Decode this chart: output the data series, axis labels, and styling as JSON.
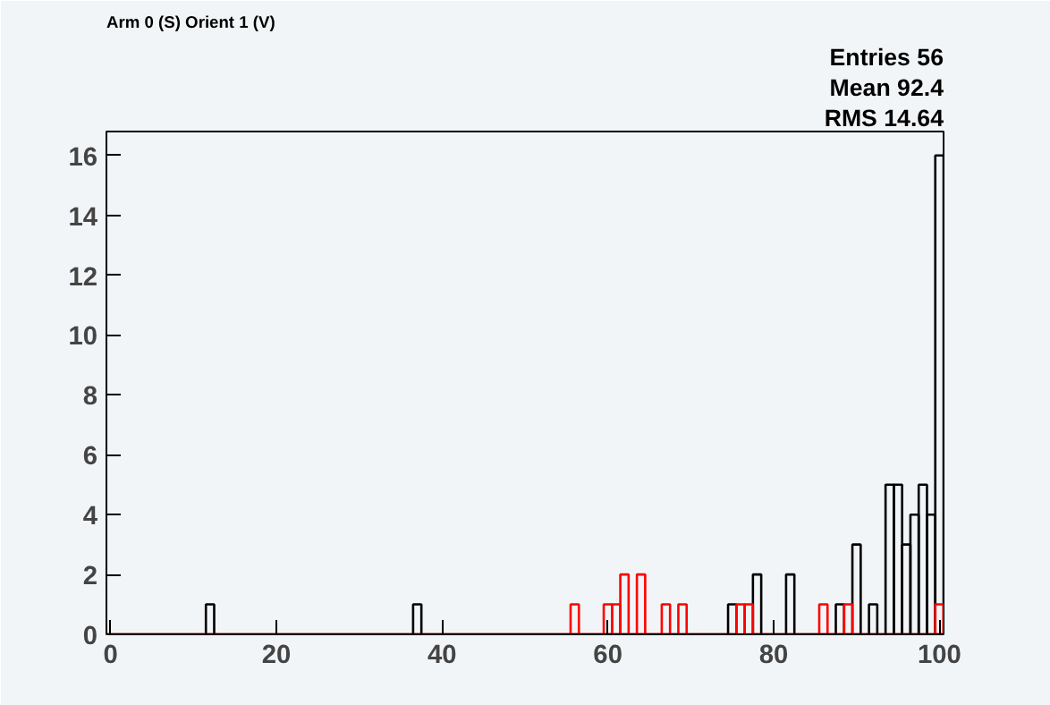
{
  "chart_data": {
    "type": "histogram",
    "title": "Arm 0 (S) Orient 1 (V)",
    "bins": [
      -0.5,
      0.5,
      1.5,
      2.5,
      3.5,
      4.5,
      5.5,
      6.5,
      7.5,
      8.5,
      9.5,
      10.5,
      11.5,
      12.5,
      13.5,
      14.5,
      15.5,
      16.5,
      17.5,
      18.5,
      19.5,
      20.5,
      21.5,
      22.5,
      23.5,
      24.5,
      25.5,
      26.5,
      27.5,
      28.5,
      29.5,
      30.5,
      31.5,
      32.5,
      33.5,
      34.5,
      35.5,
      36.5,
      37.5,
      38.5,
      39.5,
      40.5,
      41.5,
      42.5,
      43.5,
      44.5,
      45.5,
      46.5,
      47.5,
      48.5,
      49.5,
      50.5,
      51.5,
      52.5,
      53.5,
      54.5,
      55.5,
      56.5,
      57.5,
      58.5,
      59.5,
      60.5,
      61.5,
      62.5,
      63.5,
      64.5,
      65.5,
      66.5,
      67.5,
      68.5,
      69.5,
      70.5,
      71.5,
      72.5,
      73.5,
      74.5,
      75.5,
      76.5,
      77.5,
      78.5,
      79.5,
      80.5,
      81.5,
      82.5,
      83.5,
      84.5,
      85.5,
      86.5,
      87.5,
      88.5,
      89.5,
      90.5,
      91.5,
      92.5,
      93.5,
      94.5,
      95.5,
      96.5,
      97.5,
      98.5,
      99.5,
      100.5
    ],
    "series": [
      {
        "color": "#000000",
        "values": [
          0,
          0,
          0,
          0,
          0,
          0,
          0,
          0,
          0,
          0,
          0,
          0,
          1,
          0,
          0,
          0,
          0,
          0,
          0,
          0,
          0,
          0,
          0,
          0,
          0,
          0,
          0,
          0,
          0,
          0,
          0,
          0,
          0,
          0,
          0,
          0,
          0,
          1,
          0,
          0,
          0,
          0,
          0,
          0,
          0,
          0,
          0,
          0,
          0,
          0,
          0,
          0,
          0,
          0,
          0,
          0,
          0,
          0,
          0,
          0,
          0,
          0,
          0,
          0,
          0,
          0,
          0,
          0,
          0,
          0,
          0,
          0,
          0,
          0,
          0,
          1,
          null,
          null,
          2,
          0,
          0,
          0,
          2,
          0,
          0,
          0,
          0,
          0,
          1,
          0,
          3,
          0,
          1,
          0,
          5,
          5,
          3,
          4,
          5,
          4,
          16
        ]
      },
      {
        "color": "#ff0000",
        "values": [
          0,
          0,
          0,
          0,
          0,
          0,
          0,
          0,
          0,
          0,
          0,
          0,
          0,
          0,
          0,
          0,
          0,
          0,
          0,
          0,
          0,
          0,
          0,
          0,
          0,
          0,
          0,
          0,
          0,
          0,
          0,
          0,
          0,
          0,
          0,
          0,
          0,
          0,
          0,
          0,
          0,
          0,
          0,
          0,
          0,
          0,
          0,
          0,
          0,
          0,
          0,
          0,
          0,
          0,
          0,
          0,
          1,
          0,
          0,
          0,
          1,
          1,
          2,
          0,
          2,
          0,
          0,
          1,
          0,
          1,
          0,
          0,
          0,
          0,
          0,
          0,
          1,
          1,
          0,
          0,
          0,
          0,
          0,
          0,
          0,
          0,
          1,
          0,
          0,
          1,
          0,
          0,
          0,
          0,
          0,
          0,
          0,
          0,
          0,
          0,
          1
        ]
      }
    ],
    "xlim": [
      -0.5,
      100.5
    ],
    "xticks": [
      0,
      20,
      40,
      60,
      80,
      100
    ],
    "ylim": [
      0,
      16.8
    ],
    "yticks": [
      0,
      2,
      4,
      6,
      8,
      10,
      12,
      14,
      16
    ],
    "grid": false,
    "annotations": [
      "Entries 56",
      "Mean 92.4",
      "RMS 14.64"
    ]
  }
}
